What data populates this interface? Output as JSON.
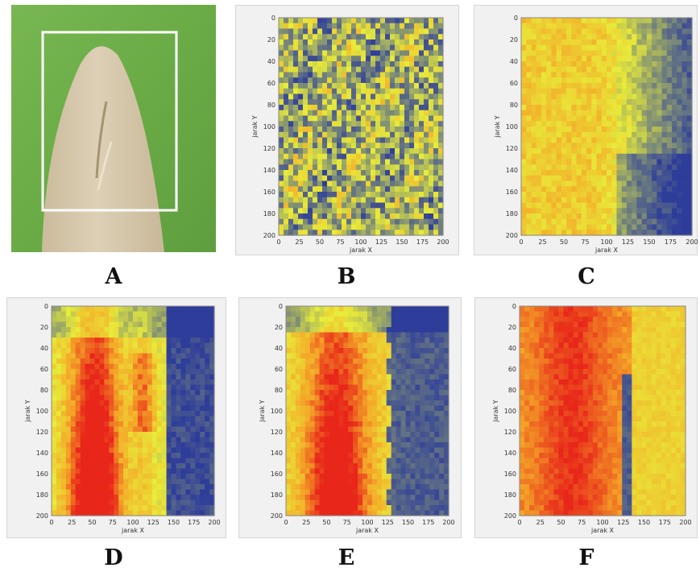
{
  "panels": [
    {
      "id": "A",
      "letter": "A"
    },
    {
      "id": "B",
      "letter": "B"
    },
    {
      "id": "C",
      "letter": "C"
    },
    {
      "id": "D",
      "letter": "D"
    },
    {
      "id": "E",
      "letter": "E"
    },
    {
      "id": "F",
      "letter": "F"
    }
  ],
  "heatmap_axes": {
    "xlabel": "jarak X",
    "ylabel": "jarak Y",
    "x_ticks": [
      0,
      25,
      50,
      75,
      100,
      125,
      150,
      175,
      200
    ],
    "y_ticks": [
      0,
      20,
      40,
      60,
      80,
      100,
      120,
      140,
      160,
      180,
      200
    ],
    "xlim": [
      0,
      200
    ],
    "ylim": [
      0,
      200
    ]
  },
  "colors": {
    "photo_background": "#6fae4a",
    "leaf": "#d6c6a8",
    "selection_box": "#ffffff",
    "scale_low": "#2e3d9a",
    "scale_mid": "#e8ec3a",
    "scale_high": "#e8261a"
  },
  "chart_data": [
    {
      "type": "heatmap",
      "panel": "B",
      "xlabel": "jarak X",
      "ylabel": "jarak Y",
      "xlim": [
        0,
        200
      ],
      "ylim": [
        0,
        200
      ],
      "pattern": "mottled yellow and blue, few hot spots"
    },
    {
      "type": "heatmap",
      "panel": "C",
      "xlabel": "jarak X",
      "ylabel": "jarak Y",
      "xlim": [
        0,
        200
      ],
      "ylim": [
        0,
        200
      ],
      "pattern": "yellow left half, blue right half"
    },
    {
      "type": "heatmap",
      "panel": "D",
      "xlabel": "jarak X",
      "ylabel": "jarak Y",
      "xlim": [
        0,
        200
      ],
      "ylim": [
        0,
        200
      ],
      "pattern": "orange-red band on left, blue right"
    },
    {
      "type": "heatmap",
      "panel": "E",
      "xlabel": "jarak X",
      "ylabel": "jarak Y",
      "xlim": [
        0,
        200
      ],
      "ylim": [
        0,
        200
      ],
      "pattern": "orange band, blue right with sharp boundary near x=125"
    },
    {
      "type": "heatmap",
      "panel": "F",
      "xlabel": "jarak X",
      "ylabel": "jarak Y",
      "xlim": [
        0,
        200
      ],
      "ylim": [
        0,
        200
      ],
      "pattern": "mostly red-orange, blue boundary line near x=125"
    }
  ]
}
